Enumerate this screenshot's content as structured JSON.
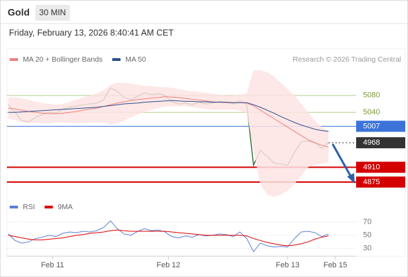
{
  "header": {
    "symbol": "Gold",
    "interval": "30 MIN",
    "datetime": "Friday, February 13, 2026 8:40:41 AM CET",
    "source": "Research © 2026 Trading Central"
  },
  "chart_data": [
    {
      "type": "line",
      "xlim": [
        0,
        47
      ],
      "ylim": [
        4842,
        5142
      ],
      "series": [
        {
          "color": "#2d6b2d",
          "values": [
            5058,
            5040,
            5020,
            5018,
            5028,
            5035,
            5040,
            5038,
            5048,
            5052,
            5055,
            5058,
            5060,
            5062,
            5070,
            5098,
            5090,
            5075,
            5070,
            5078,
            5086,
            5082,
            5084,
            5080,
            5065,
            5060,
            5062,
            5058,
            5064,
            5060,
            5062,
            5066,
            5064,
            5060,
            5068,
            5058,
            4915,
            4950,
            4935,
            4920,
            4918,
            4915,
            4945,
            4970,
            4972,
            4968,
            4955,
            4968
          ]
        },
        {
          "name": "MA 20 + Bollinger Bands",
          "color": "#f08080",
          "band_color": "#fde3e3",
          "values": [
            5050,
            5048,
            5045,
            5042,
            5040,
            5038,
            5037,
            5037,
            5038,
            5040,
            5042,
            5045,
            5048,
            5050,
            5054,
            5058,
            5062,
            5065,
            5068,
            5070,
            5072,
            5074,
            5075,
            5077,
            5076,
            5075,
            5073,
            5071,
            5069,
            5067,
            5065,
            5064,
            5063,
            5063,
            5063,
            5062,
            5055,
            5045,
            5035,
            5025,
            5015,
            5005,
            4995,
            4985,
            4975,
            4968,
            4962,
            4958
          ],
          "band_upper": [
            5075,
            5075,
            5073,
            5070,
            5065,
            5062,
            5060,
            5058,
            5060,
            5065,
            5070,
            5075,
            5080,
            5085,
            5092,
            5105,
            5110,
            5110,
            5108,
            5105,
            5103,
            5102,
            5100,
            5100,
            5098,
            5095,
            5092,
            5090,
            5088,
            5086,
            5084,
            5082,
            5080,
            5080,
            5082,
            5085,
            5140,
            5140,
            5135,
            5125,
            5110,
            5095,
            5080,
            5060,
            5040,
            5020,
            5005,
            4995
          ],
          "band_lower": [
            5025,
            5021,
            5017,
            5014,
            5015,
            5014,
            5014,
            5016,
            5016,
            5015,
            5014,
            5015,
            5016,
            5015,
            5016,
            5011,
            5014,
            5020,
            5028,
            5035,
            5041,
            5046,
            5050,
            5054,
            5054,
            5055,
            5054,
            5052,
            5050,
            5048,
            5046,
            5046,
            5046,
            5046,
            5044,
            5039,
            4950,
            4870,
            4845,
            4840,
            4845,
            4855,
            4870,
            4890,
            4910,
            4916,
            4919,
            4921
          ]
        },
        {
          "name": "MA 50",
          "color": "#2f4f8f",
          "values": [
            5040,
            5040,
            5041,
            5042,
            5043,
            5044,
            5045,
            5046,
            5047,
            5048,
            5049,
            5050,
            5051,
            5052,
            5054,
            5056,
            5058,
            5060,
            5061,
            5062,
            5064,
            5065,
            5066,
            5067,
            5068,
            5067,
            5066,
            5066,
            5065,
            5065,
            5064,
            5064,
            5064,
            5063,
            5063,
            5063,
            5058,
            5052,
            5045,
            5038,
            5030,
            5023,
            5016,
            5010,
            5005,
            5000,
            4997,
            4995
          ]
        }
      ],
      "levels": [
        {
          "value": 5080,
          "color": "#b5cf8c",
          "text_color": "#7a9a3a",
          "style": "plain"
        },
        {
          "value": 5040,
          "color": "#b5cf8c",
          "text_color": "#7a9a3a",
          "style": "plain"
        },
        {
          "value": 5007,
          "color": "#3b73d9",
          "text_color": "#ffffff",
          "style": "box"
        },
        {
          "value": 4968,
          "color": "#333333",
          "text_color": "#ffffff",
          "style": "box-dotted"
        },
        {
          "value": 4910,
          "color": "#d40000",
          "text_color": "#ffffff",
          "style": "box-thick"
        },
        {
          "value": 4875,
          "color": "#d40000",
          "text_color": "#ffffff",
          "style": "box-thick"
        }
      ]
    },
    {
      "type": "line",
      "xlim": [
        0,
        47
      ],
      "ylim": [
        18,
        92
      ],
      "yticks": [
        30,
        50,
        70
      ],
      "grid": true,
      "xticks": [
        {
          "value": 6.5,
          "label": "Feb 11"
        },
        {
          "value": 23.5,
          "label": "Feb 12"
        },
        {
          "value": 41,
          "label": "Feb 13"
        },
        {
          "value": 48,
          "label": "Feb 15"
        }
      ],
      "series": [
        {
          "name": "RSI",
          "color": "#5b7fd6",
          "values": [
            52,
            42,
            38,
            40,
            45,
            47,
            50,
            48,
            53,
            55,
            54,
            56,
            55,
            57,
            62,
            72,
            60,
            52,
            50,
            56,
            60,
            57,
            58,
            55,
            48,
            46,
            49,
            47,
            51,
            49,
            50,
            52,
            51,
            48,
            55,
            45,
            25,
            38,
            34,
            32,
            33,
            32,
            45,
            55,
            56,
            54,
            48,
            52
          ]
        },
        {
          "name": "9MA",
          "color": "#e00000",
          "values": [
            50,
            48,
            46,
            44,
            43,
            43,
            44,
            45,
            46,
            48,
            50,
            51,
            53,
            54,
            55,
            57,
            58,
            57,
            56,
            56,
            56,
            56,
            56,
            56,
            55,
            54,
            53,
            52,
            51,
            50,
            50,
            50,
            50,
            50,
            50,
            49,
            45,
            42,
            39,
            37,
            35,
            34,
            35,
            37,
            40,
            44,
            47,
            49
          ]
        }
      ]
    }
  ]
}
